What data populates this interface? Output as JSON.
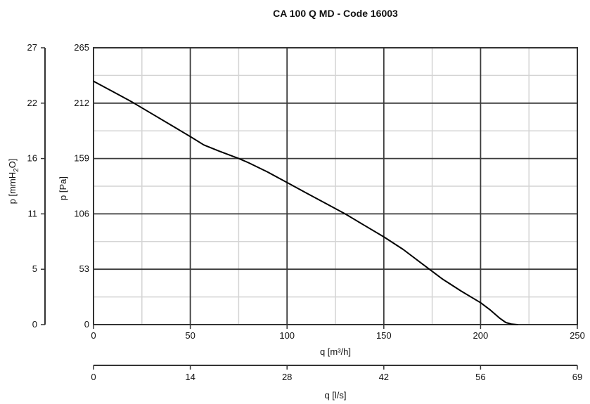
{
  "chart_data": {
    "type": "line",
    "title": "CA 100 Q MD - Code 16003",
    "xlabel": "q [m³/h]",
    "ylabel": "p [Pa]",
    "xlim": [
      0,
      250
    ],
    "ylim": [
      0,
      265
    ],
    "grid": true,
    "x_ticks": [
      "0",
      "50",
      "100",
      "150",
      "200",
      "250"
    ],
    "y_ticks": [
      "0",
      "53",
      "106",
      "159",
      "212",
      "265"
    ],
    "secondary_y": {
      "label_prefix": "p [mmH",
      "label_sub": "2",
      "label_suffix": "O]",
      "ticks": [
        "0",
        "5",
        "11",
        "16",
        "22",
        "27"
      ]
    },
    "secondary_x": {
      "label": "q [l/s]",
      "ticks": [
        "0",
        "14",
        "28",
        "42",
        "56",
        "69"
      ]
    },
    "series": [
      {
        "color": "#000000",
        "x": [
          0,
          10,
          20,
          30,
          40,
          50,
          57,
          65,
          75,
          80,
          90,
          100,
          110,
          120,
          130,
          140,
          150,
          160,
          170,
          180,
          190,
          200,
          205,
          210,
          213,
          216,
          219
        ],
        "y": [
          233,
          223,
          213,
          202,
          191,
          180,
          172,
          166,
          159,
          155,
          146,
          136,
          126,
          116,
          106,
          95,
          84,
          72,
          58,
          44,
          32,
          21,
          14,
          6,
          2,
          0.5,
          0
        ]
      }
    ]
  }
}
